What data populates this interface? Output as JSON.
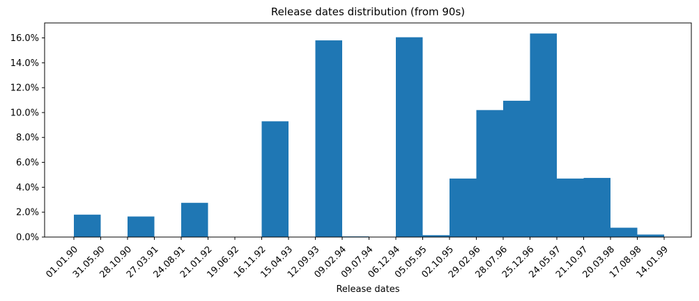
{
  "chart_data": {
    "type": "bar",
    "title": "Release dates distribution (from 90s)",
    "xlabel": "Release dates",
    "ylabel": "",
    "ylim": [
      0,
      17.2
    ],
    "y_ticks": [
      "0.0%",
      "2.0%",
      "4.0%",
      "6.0%",
      "8.0%",
      "10.0%",
      "12.0%",
      "14.0%",
      "16.0%"
    ],
    "x_ticks": [
      "01.01.90",
      "31.05.90",
      "28.10.90",
      "27.03.91",
      "24.08.91",
      "21.01.92",
      "19.06.92",
      "16.11.92",
      "15.04.93",
      "12.09.93",
      "09.02.94",
      "09.07.94",
      "06.12.94",
      "05.05.95",
      "02.10.95",
      "29.02.96",
      "28.07.96",
      "25.12.96",
      "24.05.97",
      "21.10.97",
      "20.03.98",
      "17.08.98",
      "14.01.99"
    ],
    "categories": [
      "01.01.90",
      "31.05.90",
      "28.10.90",
      "27.03.91",
      "24.08.91",
      "21.01.92",
      "19.06.92",
      "16.11.92",
      "15.04.93",
      "12.09.93",
      "09.02.94",
      "09.07.94",
      "06.12.94",
      "05.05.95",
      "02.10.95",
      "29.02.96",
      "28.07.96",
      "25.12.96",
      "24.05.97",
      "21.10.97",
      "20.03.98",
      "17.08.98"
    ],
    "values": [
      1.8,
      0,
      1.65,
      0,
      2.75,
      0,
      0,
      9.3,
      0,
      15.8,
      0.05,
      0,
      16.05,
      0.15,
      4.7,
      10.2,
      10.95,
      16.35,
      4.7,
      4.75,
      0.75,
      0.2
    ],
    "bar_color": "#1f77b4",
    "grid": false,
    "legend": "none"
  }
}
